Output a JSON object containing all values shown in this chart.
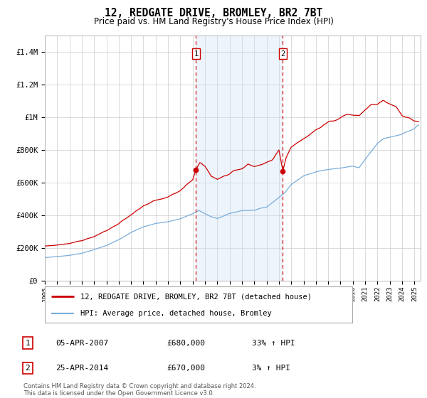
{
  "title": "12, REDGATE DRIVE, BROMLEY, BR2 7BT",
  "subtitle": "Price paid vs. HM Land Registry's House Price Index (HPI)",
  "title_fontsize": 10.5,
  "subtitle_fontsize": 8.5,
  "red_line_color": "#cc0000",
  "blue_line_color": "#7aaddc",
  "shading_color": "#cce0f5",
  "dashed_line_color": "#cc0000",
  "background_color": "#ffffff",
  "grid_color": "#cccccc",
  "ylim": [
    0,
    1500000
  ],
  "yticks": [
    0,
    200000,
    400000,
    600000,
    800000,
    1000000,
    1200000,
    1400000
  ],
  "ytick_labels": [
    "£0",
    "£200K",
    "£400K",
    "£600K",
    "£800K",
    "£1M",
    "£1.2M",
    "£1.4M"
  ],
  "year_start": 1995,
  "year_end": 2025,
  "event1_year": 2007.27,
  "event1_price": 680000,
  "event1_label": "1",
  "event2_year": 2014.32,
  "event2_price": 670000,
  "event2_label": "2",
  "legend_label_red": "12, REDGATE DRIVE, BROMLEY, BR2 7BT (detached house)",
  "legend_label_blue": "HPI: Average price, detached house, Bromley",
  "annotation1_date": "05-APR-2007",
  "annotation1_price": "£680,000",
  "annotation1_hpi": "33% ↑ HPI",
  "annotation2_date": "25-APR-2014",
  "annotation2_price": "£670,000",
  "annotation2_hpi": "3% ↑ HPI",
  "footer": "Contains HM Land Registry data © Crown copyright and database right 2024.\nThis data is licensed under the Open Government Licence v3.0."
}
